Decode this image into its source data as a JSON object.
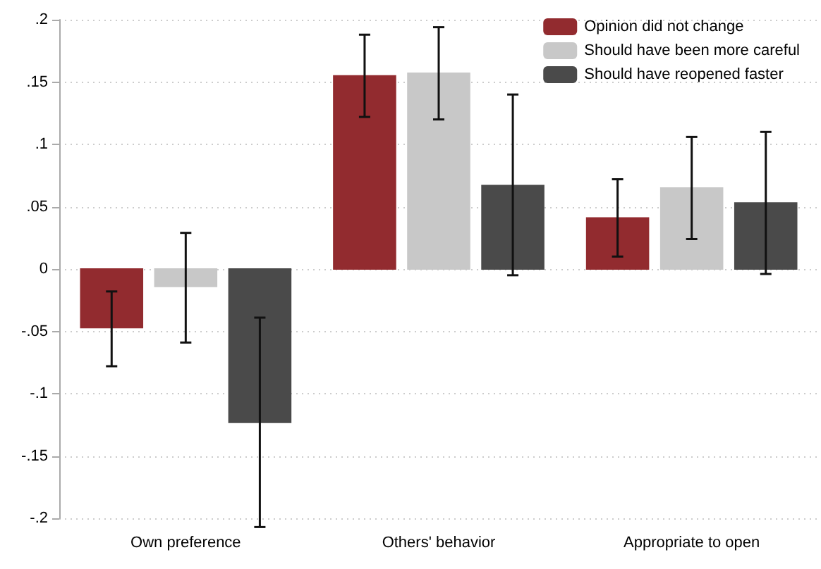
{
  "chart_data": {
    "type": "bar",
    "categories": [
      "Own preference",
      "Others' behavior",
      "Appropriate to open"
    ],
    "series": [
      {
        "name": "Opinion did not change",
        "color": "#922b2f",
        "values": [
          -0.047,
          0.155,
          0.041
        ],
        "errors": [
          [
            -0.078,
            -0.018
          ],
          [
            0.122,
            0.188
          ],
          [
            0.01,
            0.072
          ]
        ]
      },
      {
        "name": "Should have been more careful",
        "color": "#c8c8c8",
        "values": [
          -0.014,
          0.157,
          0.065
        ],
        "errors": [
          [
            -0.059,
            0.029
          ],
          [
            0.12,
            0.194
          ],
          [
            0.024,
            0.106
          ]
        ]
      },
      {
        "name": "Should have reopened faster",
        "color": "#4a4a4a",
        "values": [
          -0.123,
          0.067,
          0.053
        ],
        "errors": [
          [
            -0.207,
            -0.039
          ],
          [
            -0.005,
            0.14
          ],
          [
            -0.004,
            0.11
          ]
        ]
      }
    ],
    "ylim": [
      -0.2,
      0.2
    ],
    "yticks": [
      {
        "value": -0.2,
        "label": "-.2"
      },
      {
        "value": -0.15,
        "label": "-.15"
      },
      {
        "value": -0.1,
        "label": "-.1"
      },
      {
        "value": -0.05,
        "label": "-.05"
      },
      {
        "value": 0,
        "label": "0"
      },
      {
        "value": 0.05,
        "label": ".05"
      },
      {
        "value": 0.1,
        "label": ".1"
      },
      {
        "value": 0.15,
        "label": ".15"
      },
      {
        "value": 0.2,
        "label": ".2"
      }
    ],
    "grid": "y",
    "legend": "top right"
  }
}
